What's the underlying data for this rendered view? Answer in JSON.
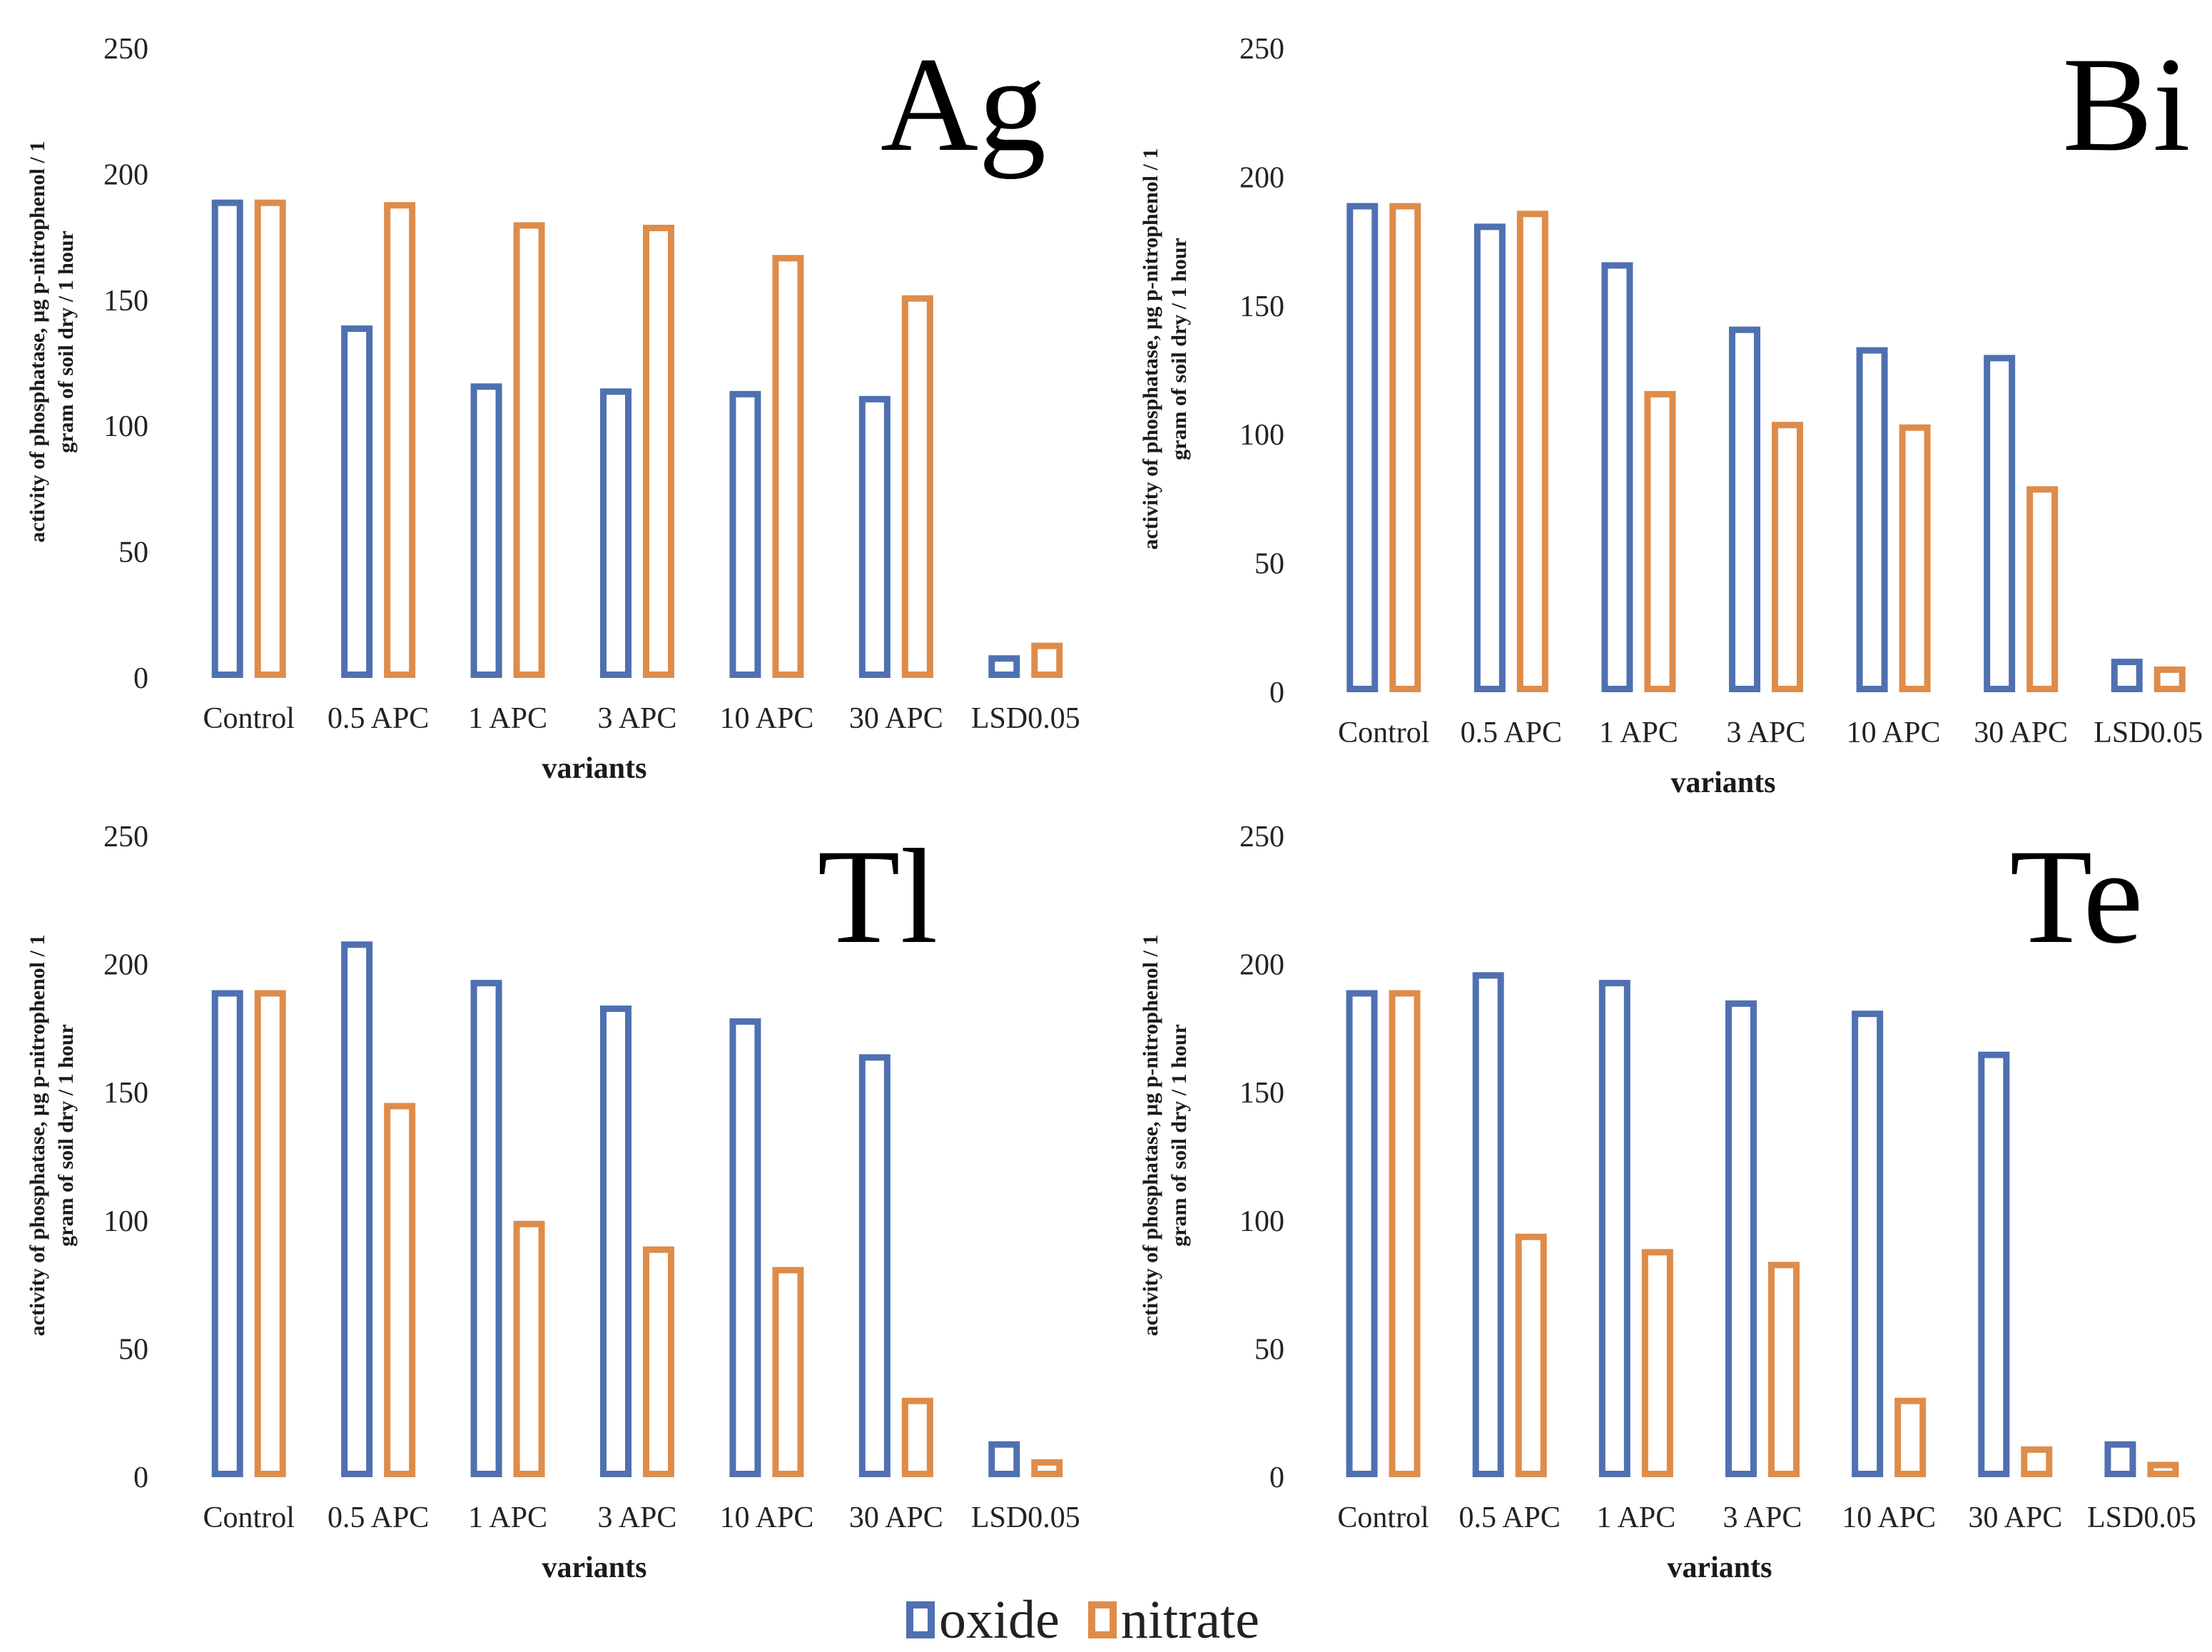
{
  "legend": [
    {
      "name": "oxide",
      "color": "#4f70b1"
    },
    {
      "name": "nitrate",
      "color": "#de8c4a"
    }
  ],
  "chart_data": [
    {
      "type": "bar",
      "title": "Ag",
      "xlabel": "variants",
      "ylabel_line1": "activity of phosphatase, µg p-nitrophenol / 1",
      "ylabel_line2": "gram of soil dry / 1 hour",
      "ylim": [
        0,
        250
      ],
      "yticks": [
        "0",
        "50",
        "100",
        "150",
        "200",
        "250"
      ],
      "categories": [
        "Control",
        "0.5 APC",
        "1 APC",
        "3 APC",
        "10 APC",
        "30 APC",
        "LSD0.05"
      ],
      "series": [
        {
          "name": "oxide",
          "values": [
            190,
            140,
            117,
            115,
            114,
            112,
            9
          ]
        },
        {
          "name": "nitrate",
          "values": [
            190,
            189,
            181,
            180,
            168,
            152,
            14
          ]
        }
      ]
    },
    {
      "type": "bar",
      "title": "Bi",
      "xlabel": "variants",
      "ylabel_line1": "activity of phosphatase, µg p-nitrophenol / 1",
      "ylabel_line2": "gram of soil dry / 1 hour",
      "ylim": [
        0,
        250
      ],
      "yticks": [
        "0",
        "50",
        "100",
        "150",
        "200",
        "250"
      ],
      "categories": [
        "Control",
        "0.5 APC",
        "1 APC",
        "3 APC",
        "10 APC",
        "30 APC",
        "LSD0.05"
      ],
      "series": [
        {
          "name": "oxide",
          "values": [
            190,
            182,
            167,
            142,
            134,
            131,
            13
          ]
        },
        {
          "name": "nitrate",
          "values": [
            190,
            187,
            117,
            105,
            104,
            80,
            10
          ]
        }
      ]
    },
    {
      "type": "bar",
      "title": "Tl",
      "xlabel": "variants",
      "ylabel_line1": "activity of phosphatase, µg p-nitrophenol / 1",
      "ylabel_line2": "gram of soil dry / 1 hour",
      "ylim": [
        0,
        250
      ],
      "yticks": [
        "0",
        "50",
        "100",
        "150",
        "200",
        "250"
      ],
      "categories": [
        "Control",
        "0.5 APC",
        "1 APC",
        "3 APC",
        "10 APC",
        "30 APC",
        "LSD0.05"
      ],
      "series": [
        {
          "name": "oxide",
          "values": [
            190,
            209,
            194,
            184,
            179,
            165,
            14
          ]
        },
        {
          "name": "nitrate",
          "values": [
            190,
            146,
            100,
            90,
            82,
            31,
            7
          ]
        }
      ]
    },
    {
      "type": "bar",
      "title": "Te",
      "xlabel": "variants",
      "ylabel_line1": "activity of phosphatase, µg p-nitrophenol / 1",
      "ylabel_line2": "gram of soil dry / 1 hour",
      "ylim": [
        0,
        250
      ],
      "yticks": [
        "0",
        "50",
        "100",
        "150",
        "200",
        "250"
      ],
      "categories": [
        "Control",
        "0.5 APC",
        "1 APC",
        "3 APC",
        "10 APC",
        "30 APC",
        "LSD0.05"
      ],
      "series": [
        {
          "name": "oxide",
          "values": [
            190,
            197,
            194,
            186,
            182,
            166,
            14
          ]
        },
        {
          "name": "nitrate",
          "values": [
            190,
            95,
            89,
            84,
            31,
            12,
            6
          ]
        }
      ]
    }
  ]
}
